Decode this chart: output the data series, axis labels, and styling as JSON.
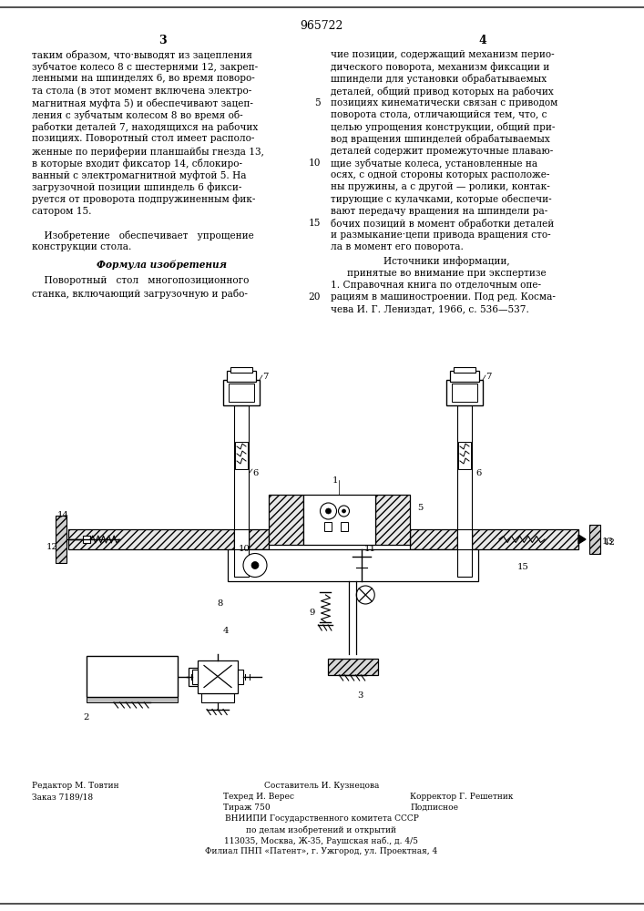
{
  "page_number_center": "965722",
  "page_col_left": "3",
  "page_col_right": "4",
  "bg_color": "#ffffff",
  "text_color": "#1a1a1a",
  "border_color": "#333333",
  "col_left_text": [
    "таким образом, что·выводят из зацепления",
    "зубчатое колесо 8 с шестернями 12, закреп-",
    "ленными на шпинделях 6, во время поворо-",
    "та стола (в этот момент включена электро-",
    "магнитная муфта 5) и обеспечивают зацеп-",
    "ления с зубчатым колесом 8 во время об-",
    "работки деталей 7, находящихся на рабочих",
    "позициях. Поворотный стол имеет располо-",
    "женные по периферии планшайбы гнезда 13,",
    "в которые входит фиксатор 14, сблокиро-",
    "ванный с электромагнитной муфтой 5. На",
    "загрузочной позиции шпиндель 6 фикси-",
    "руется от проворота подпружиненным фик-",
    "сатором 15.",
    "",
    "    Изобретение   обеспечивает   упрощение",
    "конструкции стола."
  ],
  "col_right_text": [
    "чие позиции, содержащий механизм перио-",
    "дического поворота, механизм фиксации и",
    "шпиндели для установки обрабатываемых",
    "деталей, общий привод которых на рабочих",
    "позициях кинематически связан с приводом",
    "поворота стола, отличающийся тем, что, с",
    "целью упрощения конструкции, общий при-",
    "вод вращения шпинделей обрабатываемых",
    "деталей содержит промежуточные плаваю-",
    "щие зубчатые колеса, установленные на",
    "осях, с одной стороны которых расположе-",
    "ны пружины, а с другой — ролики, контак-",
    "тирующие с кулачками, которые обеспечи-",
    "вают передачу вращения на шпиндели ра-",
    "бочих позиций в момент обработки деталей",
    "и размыкание·цепи привода вращения сто-",
    "ла в момент его поворота."
  ],
  "sources_header": "Источники информации,",
  "sources_subheader": "принятые во внимание при экспертизе",
  "sources_text": "1. Справочная книга по отделочным опе-",
  "sources_text2": "рациям в машиностроении. Под ред. Косма-",
  "sources_text3": "чева И. Г. Лениздат, 1966, с. 536—537.",
  "formula_header": "Формула изобретения",
  "formula_text1": "    Поворотный   стол   многопозиционного",
  "formula_text2": "станка, включающий загрузочную и рабо-",
  "bottom_info_left_1": "Редактор М. Товтин",
  "bottom_info_left_2": "Заказ 7189/18",
  "bottom_info_c1": "Составитель И. Кузнецова",
  "bottom_info_c2": "Техред И. Верес",
  "bottom_info_c3": "Корректор Г. Решетник",
  "bottom_info_c4": "Тираж 750",
  "bottom_info_c5": "Подписное",
  "bottom_info_r1": "ВНИИПИ Государственного комитета СССР",
  "bottom_info_r2": "по делам изобретений и открытий",
  "bottom_info_r3": "113035, Москва, Ж-35, Раушская наб., д. 4/5",
  "bottom_info_r4": "Филиал ПНП «Патент», г. Ужгород, ул. Проектная, 4"
}
